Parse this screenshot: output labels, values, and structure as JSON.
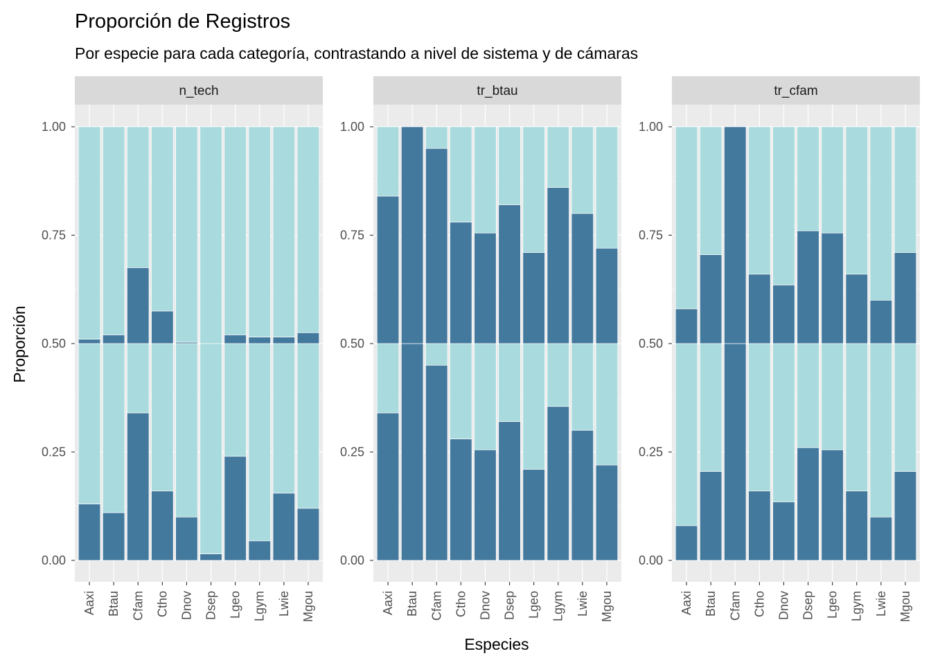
{
  "chart_data": {
    "type": "bar",
    "title": "Proporción de Registros",
    "subtitle": "Por especie para cada categoría, contrastando a nivel de sistema y de cámaras",
    "xlabel": "Especies",
    "ylabel": "Proporción",
    "ylim": [
      0,
      1
    ],
    "yticks": [
      "0.00",
      "0.25",
      "0.50",
      "0.75",
      "1.00"
    ],
    "categories": [
      "Aaxi",
      "Btau",
      "Cfam",
      "Ctho",
      "Dnov",
      "Dsep",
      "Lgeo",
      "Lgym",
      "Lwie",
      "Mgou"
    ],
    "grid": true,
    "legend": "none",
    "colors": {
      "dark": "#44799e",
      "light": "#a9dadd",
      "panel": "#ebebeb",
      "strip": "#d9d9d9",
      "grid": "#ffffff"
    },
    "panels": [
      {
        "name": "n_tech",
        "lower_dark": [
          0.13,
          0.11,
          0.34,
          0.16,
          0.1,
          0.015,
          0.24,
          0.045,
          0.155,
          0.12
        ],
        "upper_dark": [
          0.51,
          0.52,
          0.675,
          0.575,
          0.503,
          0.5,
          0.52,
          0.515,
          0.515,
          0.525
        ]
      },
      {
        "name": "tr_btau",
        "lower_dark": [
          0.34,
          0.5,
          0.45,
          0.28,
          0.255,
          0.32,
          0.21,
          0.355,
          0.3,
          0.22
        ],
        "upper_dark": [
          0.84,
          1.0,
          0.95,
          0.78,
          0.755,
          0.82,
          0.71,
          0.86,
          0.8,
          0.72
        ]
      },
      {
        "name": "tr_cfam",
        "lower_dark": [
          0.08,
          0.205,
          0.5,
          0.16,
          0.135,
          0.26,
          0.255,
          0.16,
          0.1,
          0.205
        ],
        "upper_dark": [
          0.58,
          0.705,
          1.0,
          0.66,
          0.635,
          0.76,
          0.755,
          0.66,
          0.6,
          0.71
        ]
      }
    ]
  }
}
